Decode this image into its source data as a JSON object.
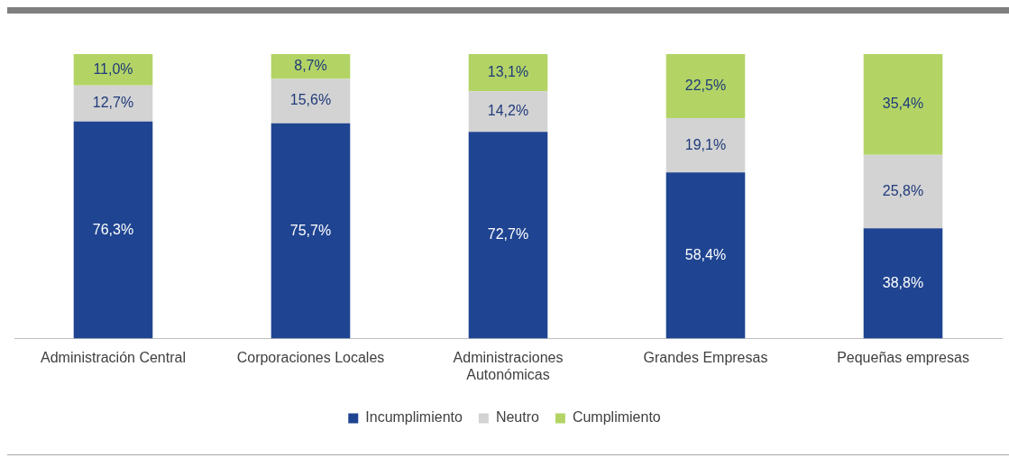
{
  "chart_data": {
    "type": "bar",
    "stacked": true,
    "categories": [
      "Administración Central",
      "Corporaciones Locales",
      "Administraciones Autonómicas",
      "Grandes Empresas",
      "Pequeñas empresas"
    ],
    "series": [
      {
        "name": "Incumplimiento",
        "color": "#1f4491",
        "values": [
          76.3,
          75.7,
          72.7,
          58.4,
          38.8
        ],
        "value_labels": [
          "76,3%",
          "75,7%",
          "72,7%",
          "58,4%",
          "38,8%"
        ]
      },
      {
        "name": "Neutro",
        "color": "#d3d3d3",
        "values": [
          12.7,
          15.6,
          14.2,
          19.1,
          25.8
        ],
        "value_labels": [
          "12,7%",
          "15,6%",
          "14,2%",
          "19,1%",
          "25,8%"
        ]
      },
      {
        "name": "Cumplimiento",
        "color": "#b3d465",
        "values": [
          11.0,
          8.7,
          13.1,
          22.5,
          35.4
        ],
        "value_labels": [
          "11,0%",
          "8,7%",
          "13,1%",
          "22,5%",
          "35,4%"
        ]
      }
    ],
    "ylim": [
      0,
      100
    ],
    "tick_labels": "x",
    "grid": false,
    "legend": "bottom"
  }
}
